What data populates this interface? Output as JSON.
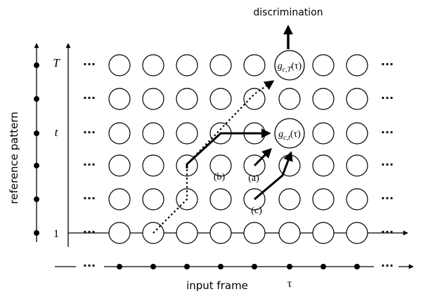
{
  "output_label": "discrimination",
  "y_axis_label": "reference pattern",
  "x_axis_label": "input frame",
  "x_axis_symbol": "τ",
  "y_tick_top": "T",
  "y_tick_mid": "t",
  "y_tick_bottom": "1",
  "ellipsis": "···",
  "node_gcT": {
    "g": "g",
    "sub": "c,T",
    "arg": "(τ)"
  },
  "node_gct": {
    "g": "g",
    "sub": "c,t",
    "arg": "(τ)"
  },
  "path_labels": {
    "a": "(a)",
    "b": "(b)",
    "c": "(c)"
  },
  "grid": {
    "rows": 6,
    "cols": 8
  }
}
